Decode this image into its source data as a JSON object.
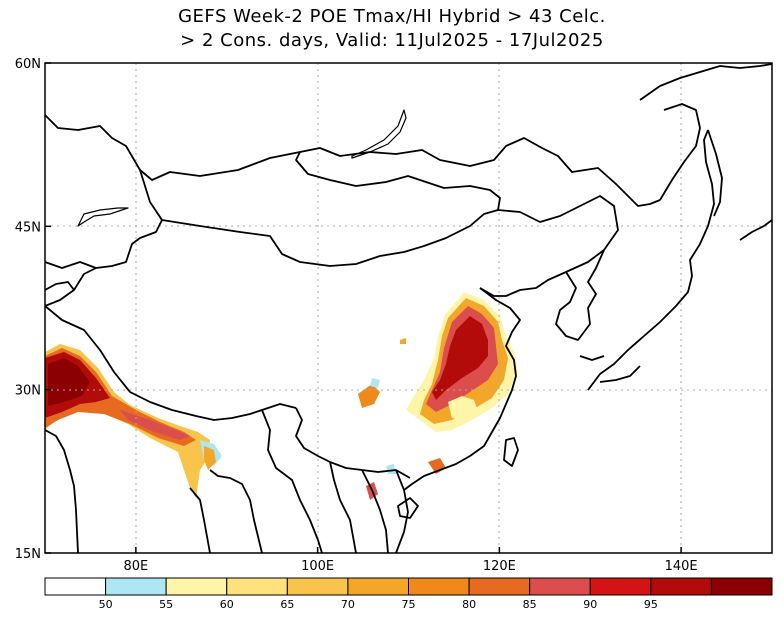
{
  "title": {
    "line1": "GEFS Week-2 POE Tmax/HI Hybrid > 43 Celc.",
    "line2": "> 2 Cons. days, Valid: 11Jul2025 - 17Jul2025"
  },
  "axes": {
    "lon_ticks": [
      {
        "value": 80,
        "label": "80E"
      },
      {
        "value": 100,
        "label": "100E"
      },
      {
        "value": 120,
        "label": "120E"
      },
      {
        "value": 140,
        "label": "140E"
      }
    ],
    "lat_ticks": [
      {
        "value": 15,
        "label": "15N"
      },
      {
        "value": 30,
        "label": "30N"
      },
      {
        "value": 45,
        "label": "45N"
      },
      {
        "value": 60,
        "label": "60N"
      }
    ],
    "lon_range": [
      70,
      150
    ],
    "lat_range": [
      15,
      60
    ],
    "grid": "dotted"
  },
  "colorbar": {
    "bins": [
      {
        "color": "#ffffff"
      },
      {
        "color": "#aee6f2",
        "label": "50"
      },
      {
        "color": "#fff5a8",
        "label": "55"
      },
      {
        "color": "#ffe27e",
        "label": "60"
      },
      {
        "color": "#f8c44c",
        "label": "65"
      },
      {
        "color": "#f3a728",
        "label": "70"
      },
      {
        "color": "#ef8a1a",
        "label": "75"
      },
      {
        "color": "#e66a20",
        "label": "80"
      },
      {
        "color": "#dc4d4d",
        "label": "85"
      },
      {
        "color": "#d41414",
        "label": "90"
      },
      {
        "color": "#b30a0a",
        "label": "95"
      },
      {
        "color": "#8b0000"
      }
    ]
  }
}
